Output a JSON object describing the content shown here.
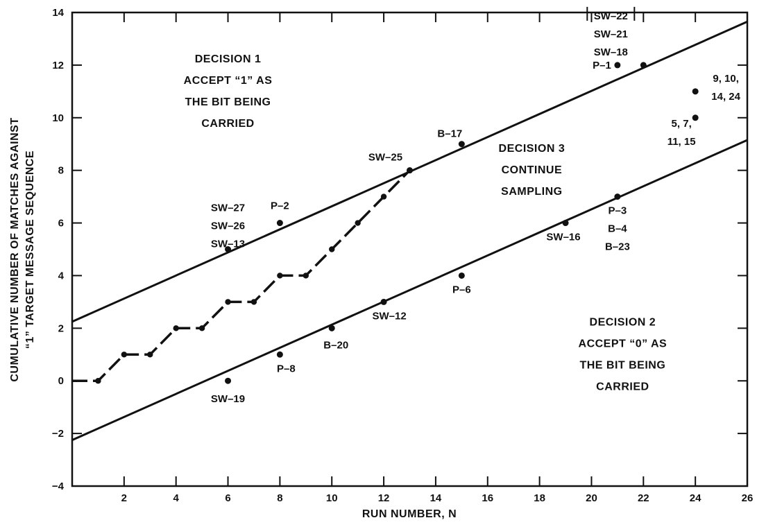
{
  "chart_data": {
    "type": "scatter",
    "xlabel": "RUN NUMBER, N",
    "ylabel_lines": [
      "CUMULATIVE NUMBER OF MATCHES AGAINST",
      "\"1\" TARGET MESSAGE SEQUENCE"
    ],
    "xlim": [
      0,
      26
    ],
    "ylim": [
      -4,
      14
    ],
    "x_ticks": [
      2,
      4,
      6,
      8,
      10,
      12,
      14,
      16,
      18,
      20,
      22,
      24,
      26
    ],
    "y_ticks": [
      -4,
      -2,
      0,
      2,
      4,
      6,
      8,
      10,
      12,
      14
    ],
    "grid": false,
    "upper_boundary": {
      "start": [
        0,
        2.25
      ],
      "end": [
        26,
        13.65
      ]
    },
    "lower_boundary": {
      "start": [
        0,
        -2.25
      ],
      "end": [
        26,
        9.15
      ]
    },
    "cumulative_path": [
      [
        0,
        0
      ],
      [
        1,
        0
      ],
      [
        2,
        1
      ],
      [
        3,
        1
      ],
      [
        4,
        2
      ],
      [
        5,
        2
      ],
      [
        6,
        3
      ],
      [
        7,
        3
      ],
      [
        8,
        4
      ],
      [
        9,
        4
      ],
      [
        10,
        5
      ],
      [
        11,
        6
      ],
      [
        12,
        7
      ],
      [
        13,
        8
      ]
    ],
    "points": [
      {
        "x": 6,
        "y": 5,
        "label_lines": [
          "SW-27",
          "SW-26",
          "SW-13"
        ]
      },
      {
        "x": 8,
        "y": 6,
        "label_lines": [
          "P-2"
        ]
      },
      {
        "x": 13,
        "y": 8,
        "label_lines": [
          "SW-25"
        ]
      },
      {
        "x": 15,
        "y": 9,
        "label_lines": [
          "B-17"
        ]
      },
      {
        "x": 21,
        "y": 12,
        "label_lines": [
          "P-1"
        ]
      },
      {
        "x": 22,
        "y": 12,
        "label_lines": [
          "SW-22",
          "SW-21",
          "SW-18"
        ]
      },
      {
        "x": 24,
        "y": 11,
        "label_lines": [
          "9, 10,",
          "14, 24"
        ]
      },
      {
        "x": 24,
        "y": 10,
        "label_lines": [
          "5, 7,",
          "11, 15"
        ]
      },
      {
        "x": 21,
        "y": 7,
        "label_lines": [
          "P-3",
          "B-4",
          "B-23"
        ]
      },
      {
        "x": 19,
        "y": 6,
        "label_lines": [
          "SW-16"
        ]
      },
      {
        "x": 15,
        "y": 4,
        "label_lines": [
          "P-6"
        ]
      },
      {
        "x": 12,
        "y": 3,
        "label_lines": [
          "SW-12"
        ]
      },
      {
        "x": 10,
        "y": 2,
        "label_lines": [
          "B-20"
        ]
      },
      {
        "x": 8,
        "y": 1,
        "label_lines": [
          "P-8"
        ]
      },
      {
        "x": 6,
        "y": 0,
        "label_lines": [
          "SW-19"
        ]
      }
    ],
    "annotations": [
      {
        "id": "decision-1",
        "lines": [
          "DECISION 1",
          "ACCEPT \"1\" AS",
          "THE BIT BEING",
          "CARRIED"
        ],
        "x": 6,
        "y": 12.1
      },
      {
        "id": "decision-3",
        "lines": [
          "DECISION 3",
          "CONTINUE",
          "SAMPLING"
        ],
        "x": 17.7,
        "y": 8.7
      },
      {
        "id": "decision-2",
        "lines": [
          "DECISION 2",
          "ACCEPT \"0\" AS",
          "THE BIT BEING",
          "CARRIED"
        ],
        "x": 21.2,
        "y": 2.1
      }
    ]
  }
}
